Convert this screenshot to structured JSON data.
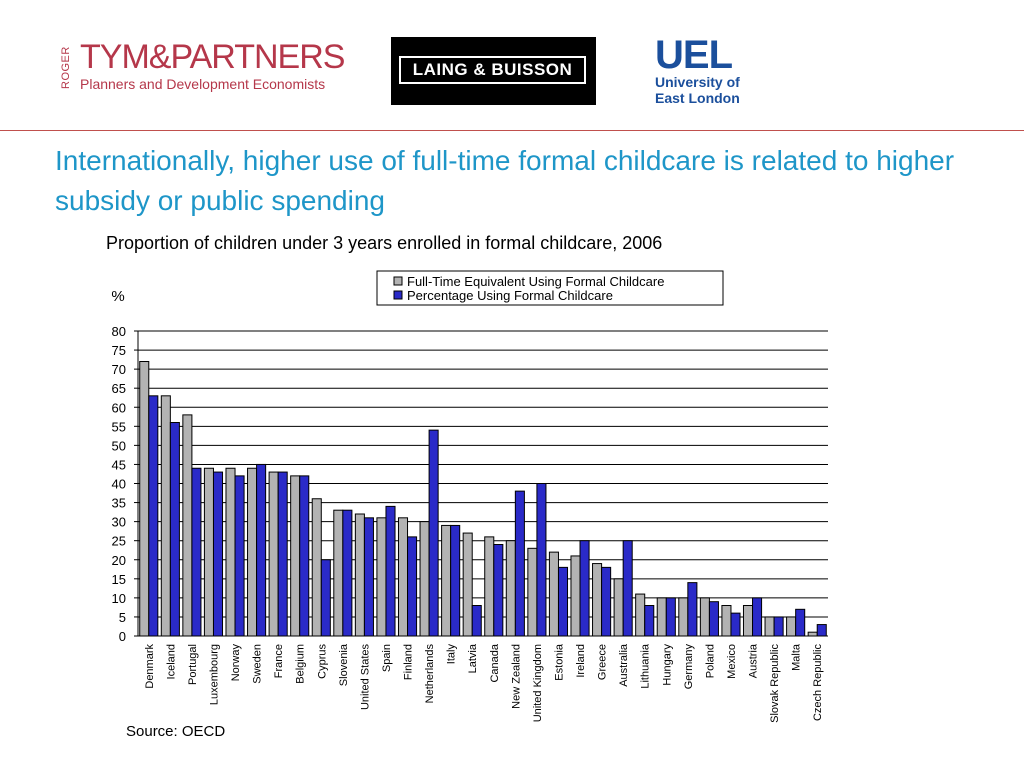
{
  "logos": {
    "tym": {
      "vertical": "ROGER",
      "main": "TYM&PARTNERS",
      "sub": "Planners and Development Economists"
    },
    "lb": {
      "text": "LAING & BUISSON"
    },
    "uel": {
      "big": "UEL",
      "line1": "University of",
      "line2": "East London"
    }
  },
  "title": "Internationally, higher use of full-time formal childcare is related to higher subsidy or public spending",
  "subtitle": "Proportion of children under 3 years enrolled in formal childcare, 2006",
  "source": "Source: OECD",
  "colors": {
    "accent_title": "#1e96c8",
    "rule": "#c0504d",
    "series_fte": "#b3b3b3",
    "series_pct": "#2a2ac8"
  },
  "chart_data": {
    "type": "bar",
    "ylabel": "%",
    "ylim": [
      0,
      80
    ],
    "yticks": [
      0,
      5,
      10,
      15,
      20,
      25,
      30,
      35,
      40,
      45,
      50,
      55,
      60,
      65,
      70,
      75,
      80
    ],
    "grid": true,
    "legend_position": "top-right",
    "categories": [
      "Denmark",
      "Iceland",
      "Portugal",
      "Luxembourg",
      "Norway",
      "Sweden",
      "France",
      "Belgium",
      "Cyprus",
      "Slovenia",
      "United States",
      "Spain",
      "Finland",
      "Netherlands",
      "Italy",
      "Latvia",
      "Canada",
      "New Zealand",
      "United Kingdom",
      "Estonia",
      "Ireland",
      "Greece",
      "Australia",
      "Lithuania",
      "Hungary",
      "Germany",
      "Poland",
      "Mexico",
      "Austria",
      "Slovak Republic",
      "Malta",
      "Czech Republic"
    ],
    "series": [
      {
        "name": "Full-Time Equivalent Using Formal Childcare",
        "color": "#b3b3b3",
        "values": [
          72,
          63,
          58,
          44,
          44,
          44,
          43,
          42,
          36,
          33,
          32,
          31,
          31,
          30,
          29,
          27,
          26,
          25,
          23,
          22,
          21,
          19,
          15,
          11,
          10,
          10,
          10,
          8,
          8,
          5,
          5,
          1
        ]
      },
      {
        "name": "Percentage Using Formal Childcare",
        "color": "#2a2ac8",
        "values": [
          63,
          56,
          44,
          43,
          42,
          45,
          43,
          42,
          20,
          33,
          31,
          34,
          26,
          54,
          29,
          8,
          24,
          38,
          40,
          18,
          25,
          18,
          25,
          8,
          10,
          14,
          9,
          6,
          10,
          5,
          7,
          3
        ]
      }
    ]
  }
}
